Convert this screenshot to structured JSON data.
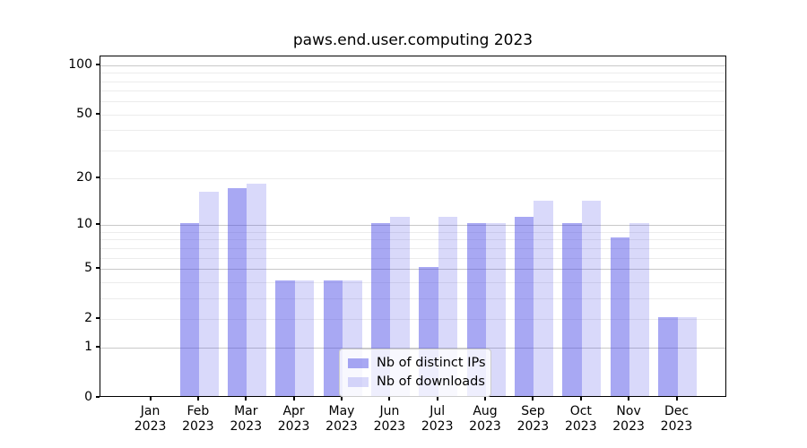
{
  "chart_data": {
    "type": "bar",
    "title": "paws.end.user.computing 2023",
    "categories": [
      "Jan",
      "Feb",
      "Mar",
      "Apr",
      "May",
      "Jun",
      "Jul",
      "Aug",
      "Sep",
      "Oct",
      "Nov",
      "Dec"
    ],
    "x_year_label": "2023",
    "series": [
      {
        "name": "Nb of distinct IPs",
        "values": [
          0,
          10,
          17,
          4,
          4,
          10,
          5,
          10,
          11,
          10,
          8,
          2
        ],
        "color": "#a5a5f2",
        "fill": "rgba(70,70,230,0.47)"
      },
      {
        "name": "Nb of downloads",
        "values": [
          0,
          16,
          18,
          4,
          4,
          11,
          11,
          10,
          14,
          14,
          10,
          2
        ],
        "color": "#d9d9fa",
        "fill": "rgba(65,65,230,0.20)"
      }
    ],
    "yscale": "log1p",
    "ylim": [
      0,
      113
    ],
    "yticks": [
      0,
      1,
      2,
      5,
      10,
      20,
      50,
      100
    ],
    "grid_minor": [
      2,
      3,
      4,
      6,
      7,
      8,
      9,
      20,
      30,
      40,
      50,
      60,
      70,
      80,
      90
    ],
    "grid_major": [
      1,
      5,
      10,
      100
    ],
    "xlabel": "",
    "ylabel": "",
    "legend_position": "lower center"
  }
}
